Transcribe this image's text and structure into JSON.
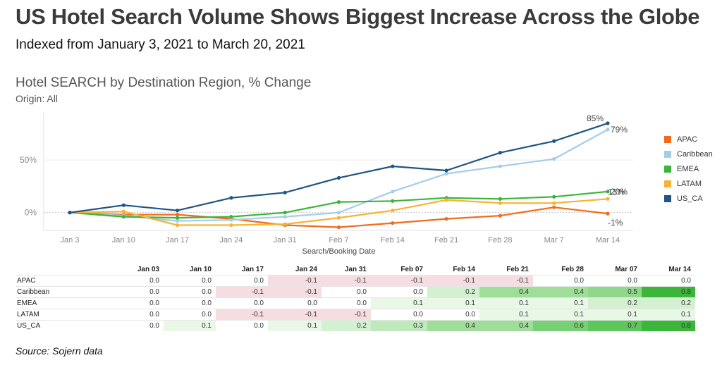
{
  "header": {
    "title": "US Hotel Search Volume Shows Biggest Increase Across the Globe",
    "subtitle": "Indexed from January 3, 2021 to March 20, 2021"
  },
  "chart_header": {
    "title": "Hotel SEARCH by Destination Region, % Change",
    "origin": "Origin: All"
  },
  "source": "Source: Sojern data",
  "chart_data": {
    "type": "line",
    "title": "Hotel SEARCH by Destination Region, % Change",
    "xlabel": "Search/Booking Date",
    "ylabel": "",
    "categories": [
      "Jan 3",
      "Jan 10",
      "Jan 17",
      "Jan 24",
      "Jan 31",
      "Feb 7",
      "Feb 14",
      "Feb 21",
      "Feb 28",
      "Mar 7",
      "Mar 14"
    ],
    "y_ticks": [
      0,
      50
    ],
    "y_tick_labels": [
      "0%",
      "50%"
    ],
    "ylim": [
      -17,
      95
    ],
    "grid": true,
    "legend_position": "right",
    "series": [
      {
        "name": "APAC",
        "color": "#f26b1d",
        "values": [
          0,
          -2,
          -2,
          -6,
          -12,
          -14,
          -10,
          -6,
          -3,
          5,
          -1
        ],
        "end_label": "-1%"
      },
      {
        "name": "Caribbean",
        "color": "#a5cdea",
        "values": [
          0,
          -3,
          -8,
          -7,
          -4,
          0,
          20,
          37,
          44,
          51,
          79
        ],
        "end_label": "79%"
      },
      {
        "name": "EMEA",
        "color": "#3ab43a",
        "values": [
          0,
          -4,
          -5,
          -4,
          0,
          10,
          11,
          14,
          13,
          15,
          20
        ],
        "end_label": "20%"
      },
      {
        "name": "LATAM",
        "color": "#f9b234",
        "values": [
          0,
          1,
          -12,
          -12,
          -11,
          -5,
          2,
          12,
          9,
          9,
          13
        ],
        "end_label": "13%"
      },
      {
        "name": "US_CA",
        "color": "#1f5582",
        "values": [
          0,
          7,
          2,
          14,
          19,
          33,
          44,
          40,
          57,
          68,
          85
        ],
        "end_label": "85%"
      }
    ]
  },
  "table": {
    "columns": [
      "Jan 03",
      "Jan 10",
      "Jan 17",
      "Jan 24",
      "Jan 31",
      "Feb 07",
      "Feb 14",
      "Feb 21",
      "Feb 28",
      "Mar 07",
      "Mar 14"
    ],
    "rows": [
      {
        "label": "APAC",
        "cells": [
          "0.0",
          "0.0",
          "0.0",
          "-0.1",
          "-0.1",
          "-0.1",
          "-0.1",
          "-0.1",
          "0.0",
          "0.0",
          "0.0"
        ]
      },
      {
        "label": "Caribbean",
        "cells": [
          "0.0",
          "0.0",
          "-0.1",
          "-0.1",
          "0.0",
          "0.0",
          "0.2",
          "0.4",
          "0.4",
          "0.5",
          "0.8"
        ]
      },
      {
        "label": "EMEA",
        "cells": [
          "0.0",
          "0.0",
          "0.0",
          "0.0",
          "0.0",
          "0.1",
          "0.1",
          "0.1",
          "0.1",
          "0.2",
          "0.2"
        ]
      },
      {
        "label": "LATAM",
        "cells": [
          "0.0",
          "0.0",
          "-0.1",
          "-0.1",
          "-0.1",
          "0.0",
          "0.0",
          "0.1",
          "0.1",
          "0.1",
          "0.1"
        ]
      },
      {
        "label": "US_CA",
        "cells": [
          "0.0",
          "0.1",
          "0.0",
          "0.1",
          "0.2",
          "0.3",
          "0.4",
          "0.4",
          "0.6",
          "0.7",
          "0.8"
        ]
      }
    ]
  }
}
